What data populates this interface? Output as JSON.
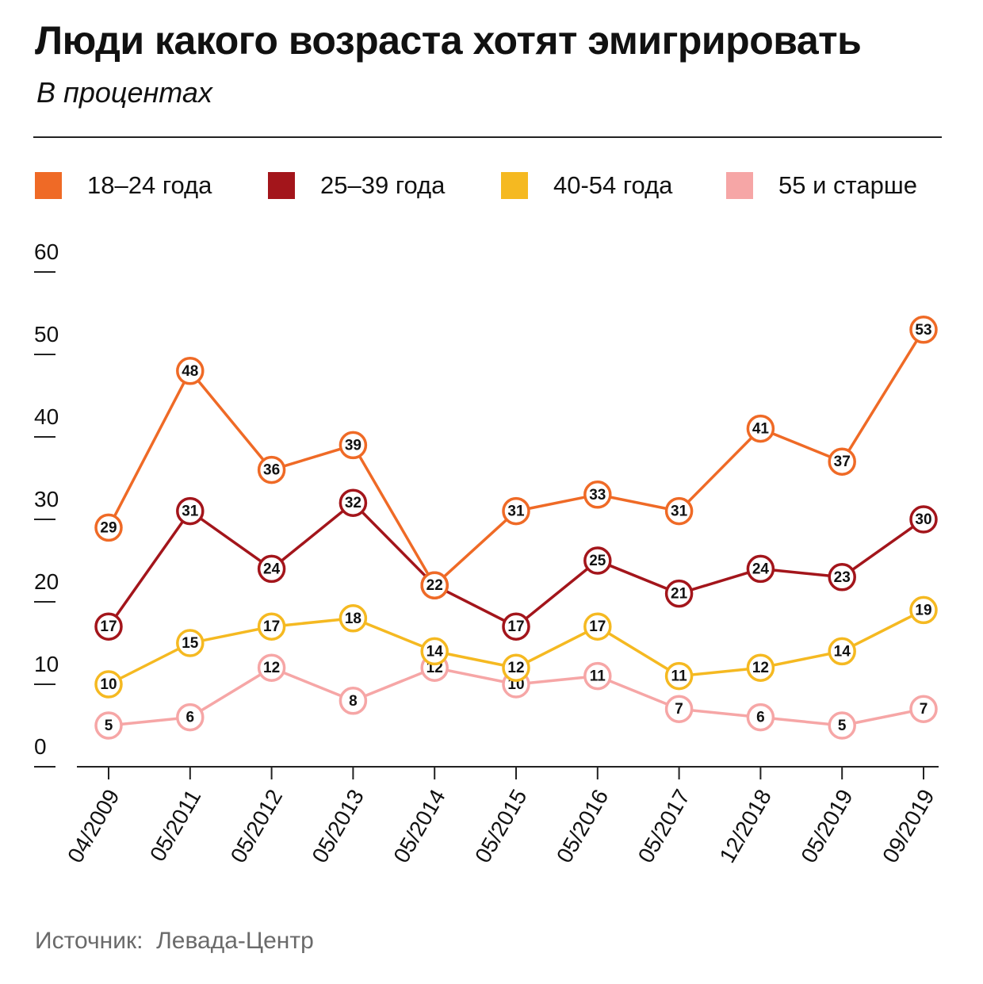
{
  "header": {
    "title": "Люди какого возраста хотят эмигрировать",
    "subtitle": "В процентах"
  },
  "footer": {
    "source_prefix": "Источник:",
    "source_name": "Левада-Центр"
  },
  "chart_data": {
    "type": "line",
    "title": "Люди какого возраста хотят эмигрировать",
    "subtitle": "В процентах",
    "xlabel": "",
    "ylabel": "",
    "x": [
      "04/2009",
      "05/2011",
      "05/2012",
      "05/2013",
      "05/2014",
      "05/2015",
      "05/2016",
      "05/2017",
      "12/2018",
      "05/2019",
      "09/2019"
    ],
    "ylim": [
      0,
      60
    ],
    "yticks": [
      0,
      10,
      20,
      30,
      40,
      50,
      60
    ],
    "grid": false,
    "legend_position": "top",
    "series": [
      {
        "name": "18–24 года",
        "color": "#ef6a26",
        "values": [
          29,
          48,
          36,
          39,
          22,
          31,
          33,
          31,
          41,
          37,
          53
        ]
      },
      {
        "name": "25–39 года",
        "color": "#a3151b",
        "values": [
          17,
          31,
          24,
          32,
          22,
          17,
          25,
          21,
          24,
          23,
          30
        ]
      },
      {
        "name": "40-54 года",
        "color": "#f5b921",
        "values": [
          10,
          15,
          17,
          18,
          14,
          12,
          17,
          11,
          12,
          14,
          19
        ]
      },
      {
        "name": "55 и старше",
        "color": "#f6a6a6",
        "values": [
          5,
          6,
          12,
          8,
          12,
          10,
          11,
          7,
          6,
          5,
          7
        ]
      }
    ]
  }
}
